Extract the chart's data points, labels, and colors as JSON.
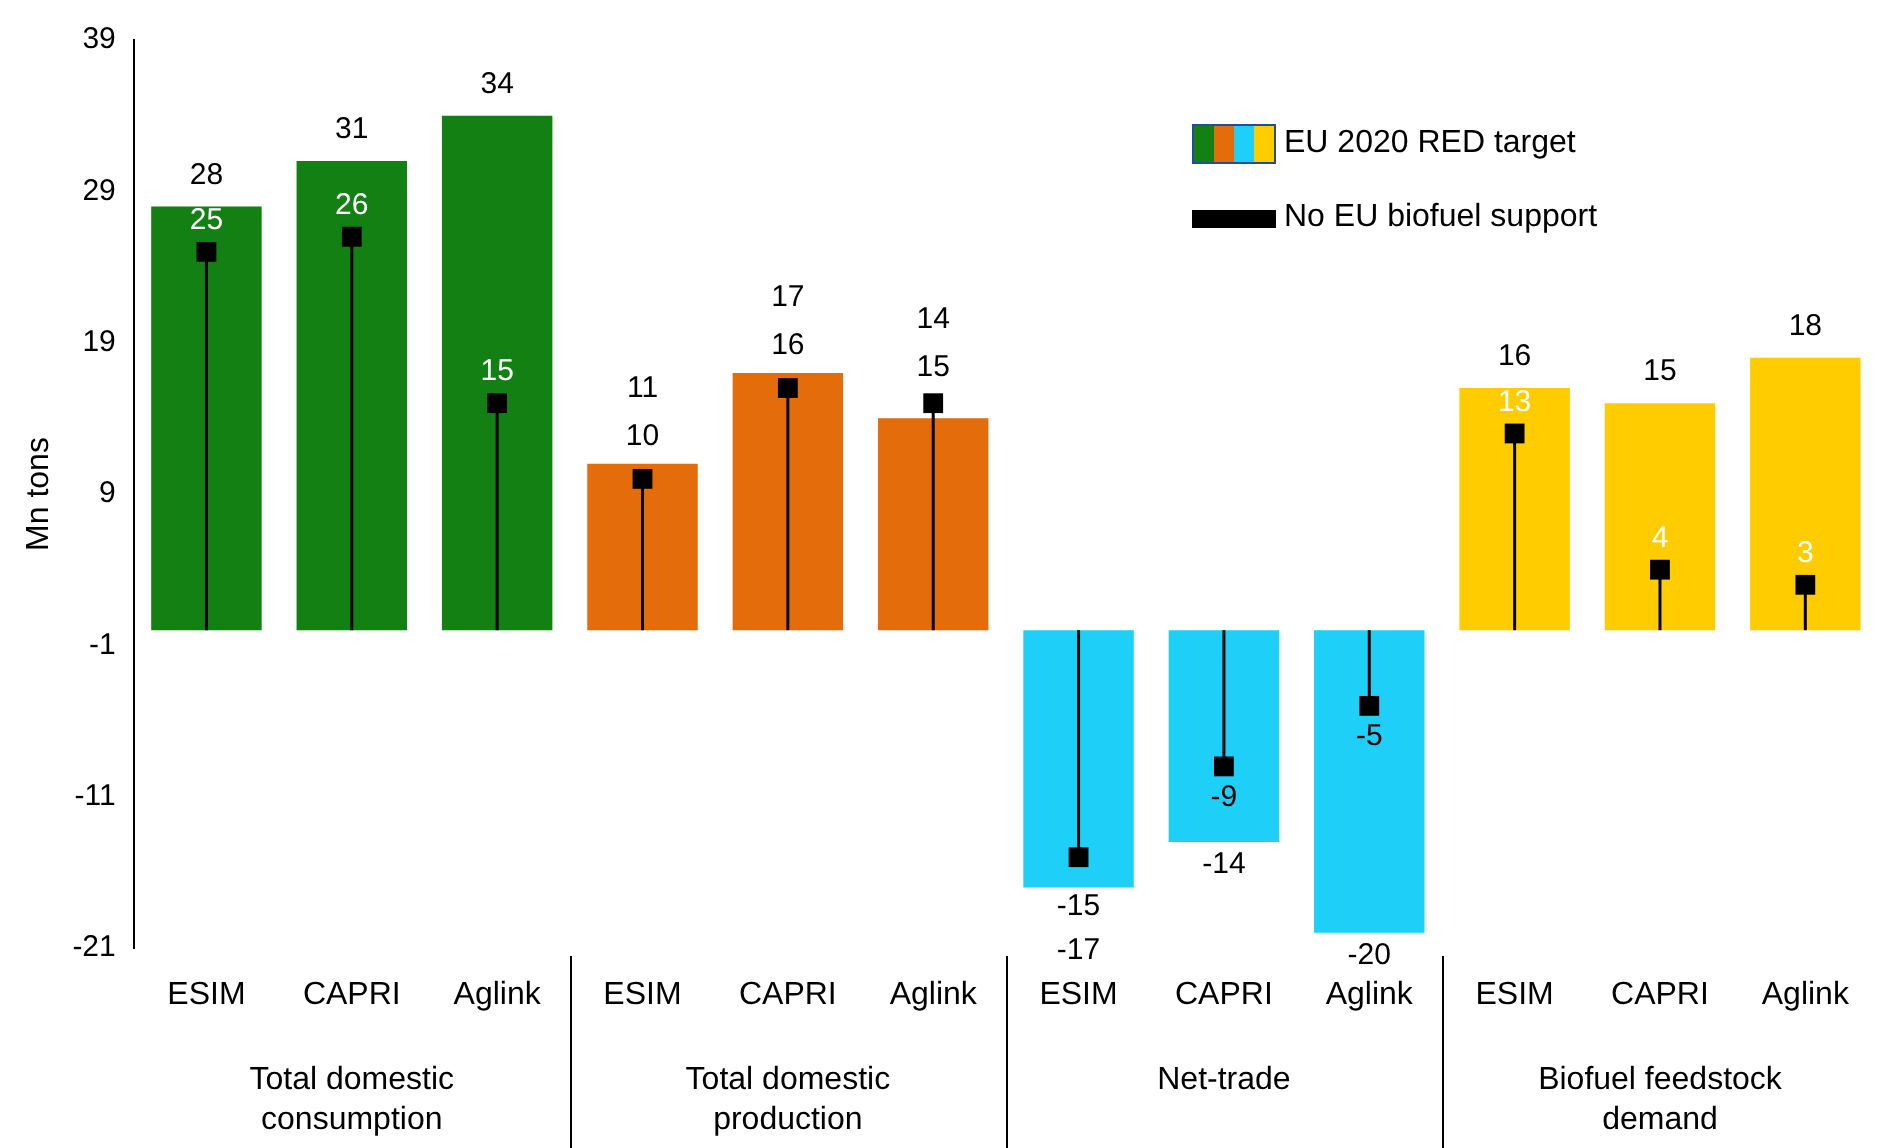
{
  "chart_data": {
    "type": "bar",
    "ylabel": "Mn tons",
    "categories": [
      "ESIM",
      "CAPRI",
      "Aglink",
      "ESIM",
      "CAPRI",
      "Aglink",
      "ESIM",
      "CAPRI",
      "Aglink",
      "ESIM",
      "CAPRI",
      "Aglink"
    ],
    "series": [
      {
        "name": "EU 2020  RED target",
        "type": "bar",
        "color": "#1f4e9c",
        "colors": [
          "#138013",
          "#138013",
          "#138013",
          "#e46c0a",
          "#e46c0a",
          "#e46c0a",
          "#1ecff7",
          "#1ecff7",
          "#1ecff7",
          "#ffcc00",
          "#ffcc00",
          "#ffcc00"
        ],
        "values": [
          28,
          31,
          34,
          11,
          17,
          14,
          -17,
          -14,
          -20,
          16,
          15,
          18
        ]
      },
      {
        "name": "No EU biofuel support",
        "type": "lollipop",
        "color": "#000000",
        "values": [
          25,
          26,
          15,
          10,
          16,
          15,
          -15,
          -9,
          -5,
          13,
          4,
          3
        ]
      }
    ],
    "annotations": [
      "Total domestic consumption",
      "Total domestic production",
      "Net-trade",
      "Biofuel feedstock demand"
    ],
    "ylim": [
      -21,
      39
    ],
    "yticks": [
      -21,
      -11,
      -1,
      9,
      19,
      29,
      39
    ],
    "grid": false,
    "marker": "square",
    "legend": "top right",
    "data_labels": true
  }
}
